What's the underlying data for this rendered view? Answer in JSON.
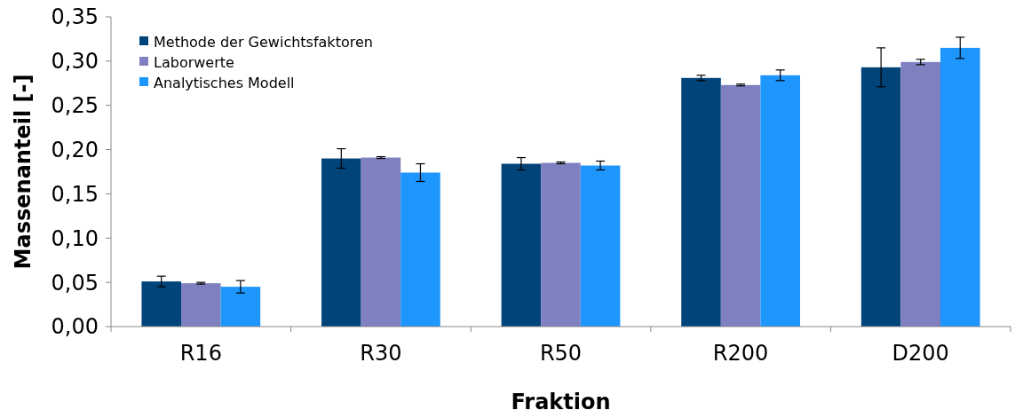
{
  "chart_data": {
    "type": "bar",
    "xlabel": "Fraktion",
    "ylabel": "Massenanteil [-]",
    "categories": [
      "R16",
      "R30",
      "R50",
      "R200",
      "D200"
    ],
    "series": [
      {
        "name": "Methode der Gewichtsfaktoren",
        "color": "#01447a",
        "values": [
          0.051,
          0.19,
          0.184,
          0.281,
          0.293
        ],
        "errors": [
          0.006,
          0.011,
          0.007,
          0.003,
          0.022
        ]
      },
      {
        "name": "Laborwerte",
        "color": "#7f80c0",
        "values": [
          0.049,
          0.191,
          0.185,
          0.273,
          0.299
        ],
        "errors": [
          0.001,
          0.001,
          0.001,
          0.001,
          0.003
        ]
      },
      {
        "name": "Analytisches Modell",
        "color": "#1d96fd",
        "values": [
          0.045,
          0.174,
          0.182,
          0.284,
          0.315
        ],
        "errors": [
          0.007,
          0.01,
          0.005,
          0.006,
          0.012
        ]
      }
    ],
    "ylim": [
      0,
      0.35
    ],
    "yticks": [
      {
        "value": 0,
        "label": "0,00"
      },
      {
        "value": 0.05,
        "label": "0,05"
      },
      {
        "value": 0.1,
        "label": "0,10"
      },
      {
        "value": 0.15,
        "label": "0,15"
      },
      {
        "value": 0.2,
        "label": "0,20"
      },
      {
        "value": 0.25,
        "label": "0,25"
      },
      {
        "value": 0.3,
        "label": "0,30"
      },
      {
        "value": 0.35,
        "label": "0,35"
      }
    ],
    "grid": false,
    "legend": "top left"
  }
}
